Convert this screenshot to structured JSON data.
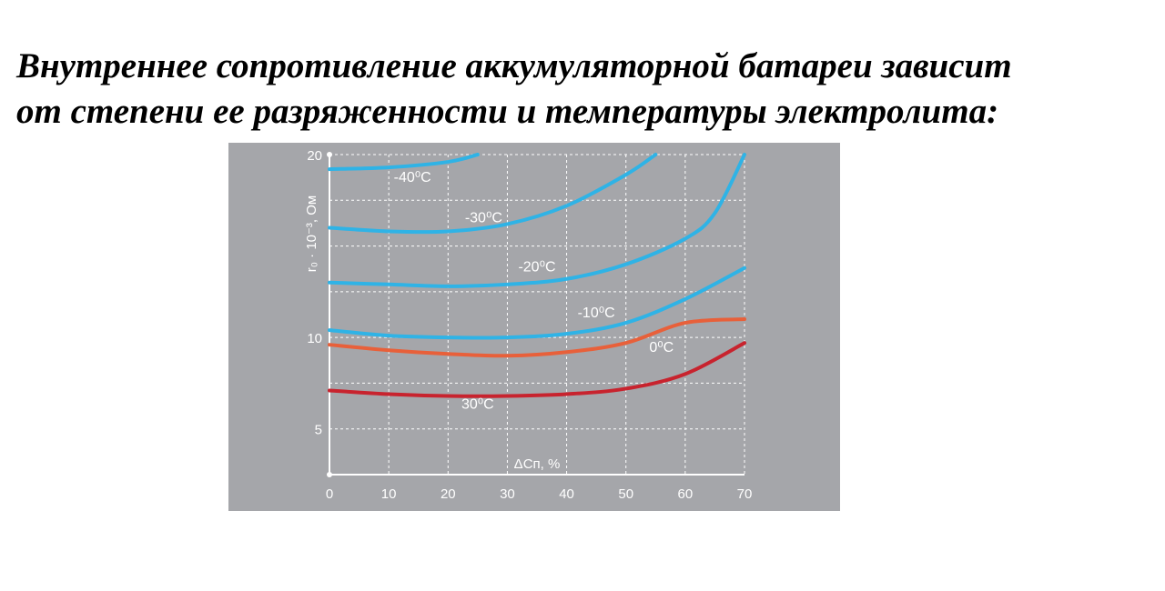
{
  "heading": {
    "line1": "Внутреннее сопротивление аккумуляторной батареи зависит",
    "line2": "от степени ее разряженности и температуры электролита:"
  },
  "chart_data": {
    "type": "line",
    "xlabel": "ΔCп, %",
    "ylabel": "r₀ · 10⁻³, Ом",
    "xlim": [
      0,
      70
    ],
    "ylim": [
      2.5,
      20
    ],
    "xticks": [
      "0",
      "10",
      "20",
      "30",
      "40",
      "50",
      "60",
      "70"
    ],
    "yticks": [
      "5",
      "10",
      "20"
    ],
    "ytick_values": [
      5,
      10,
      20
    ],
    "grid": true,
    "background": "#a5a6aa",
    "series": [
      {
        "name": "-40⁰C",
        "color": "#2fb3e6",
        "x": [
          0,
          10,
          20,
          25
        ],
        "y": [
          19.2,
          19.3,
          19.6,
          20.0
        ]
      },
      {
        "name": "-30⁰C",
        "color": "#2fb3e6",
        "x": [
          0,
          10,
          20,
          30,
          40,
          50,
          55
        ],
        "y": [
          16.0,
          15.8,
          15.8,
          16.2,
          17.2,
          18.9,
          20.0
        ]
      },
      {
        "name": "-20⁰C",
        "color": "#2fb3e6",
        "x": [
          0,
          10,
          20,
          30,
          40,
          50,
          60,
          65,
          70
        ],
        "y": [
          13.0,
          12.9,
          12.8,
          12.9,
          13.2,
          14.0,
          15.4,
          16.8,
          20.0
        ]
      },
      {
        "name": "-10⁰C",
        "color": "#2fb3e6",
        "x": [
          0,
          10,
          20,
          30,
          40,
          50,
          60,
          70
        ],
        "y": [
          10.4,
          10.1,
          10.0,
          10.0,
          10.2,
          10.8,
          12.1,
          13.8
        ]
      },
      {
        "name": "0⁰C",
        "color": "#e8603a",
        "x": [
          0,
          10,
          20,
          30,
          40,
          50,
          60,
          70
        ],
        "y": [
          9.6,
          9.3,
          9.1,
          9.0,
          9.2,
          9.7,
          10.8,
          11.0
        ]
      },
      {
        "name": "30⁰C",
        "color": "#c8232e",
        "x": [
          0,
          10,
          20,
          30,
          40,
          50,
          60,
          70
        ],
        "y": [
          7.1,
          6.9,
          6.8,
          6.8,
          6.9,
          7.2,
          8.0,
          9.7
        ]
      }
    ]
  }
}
